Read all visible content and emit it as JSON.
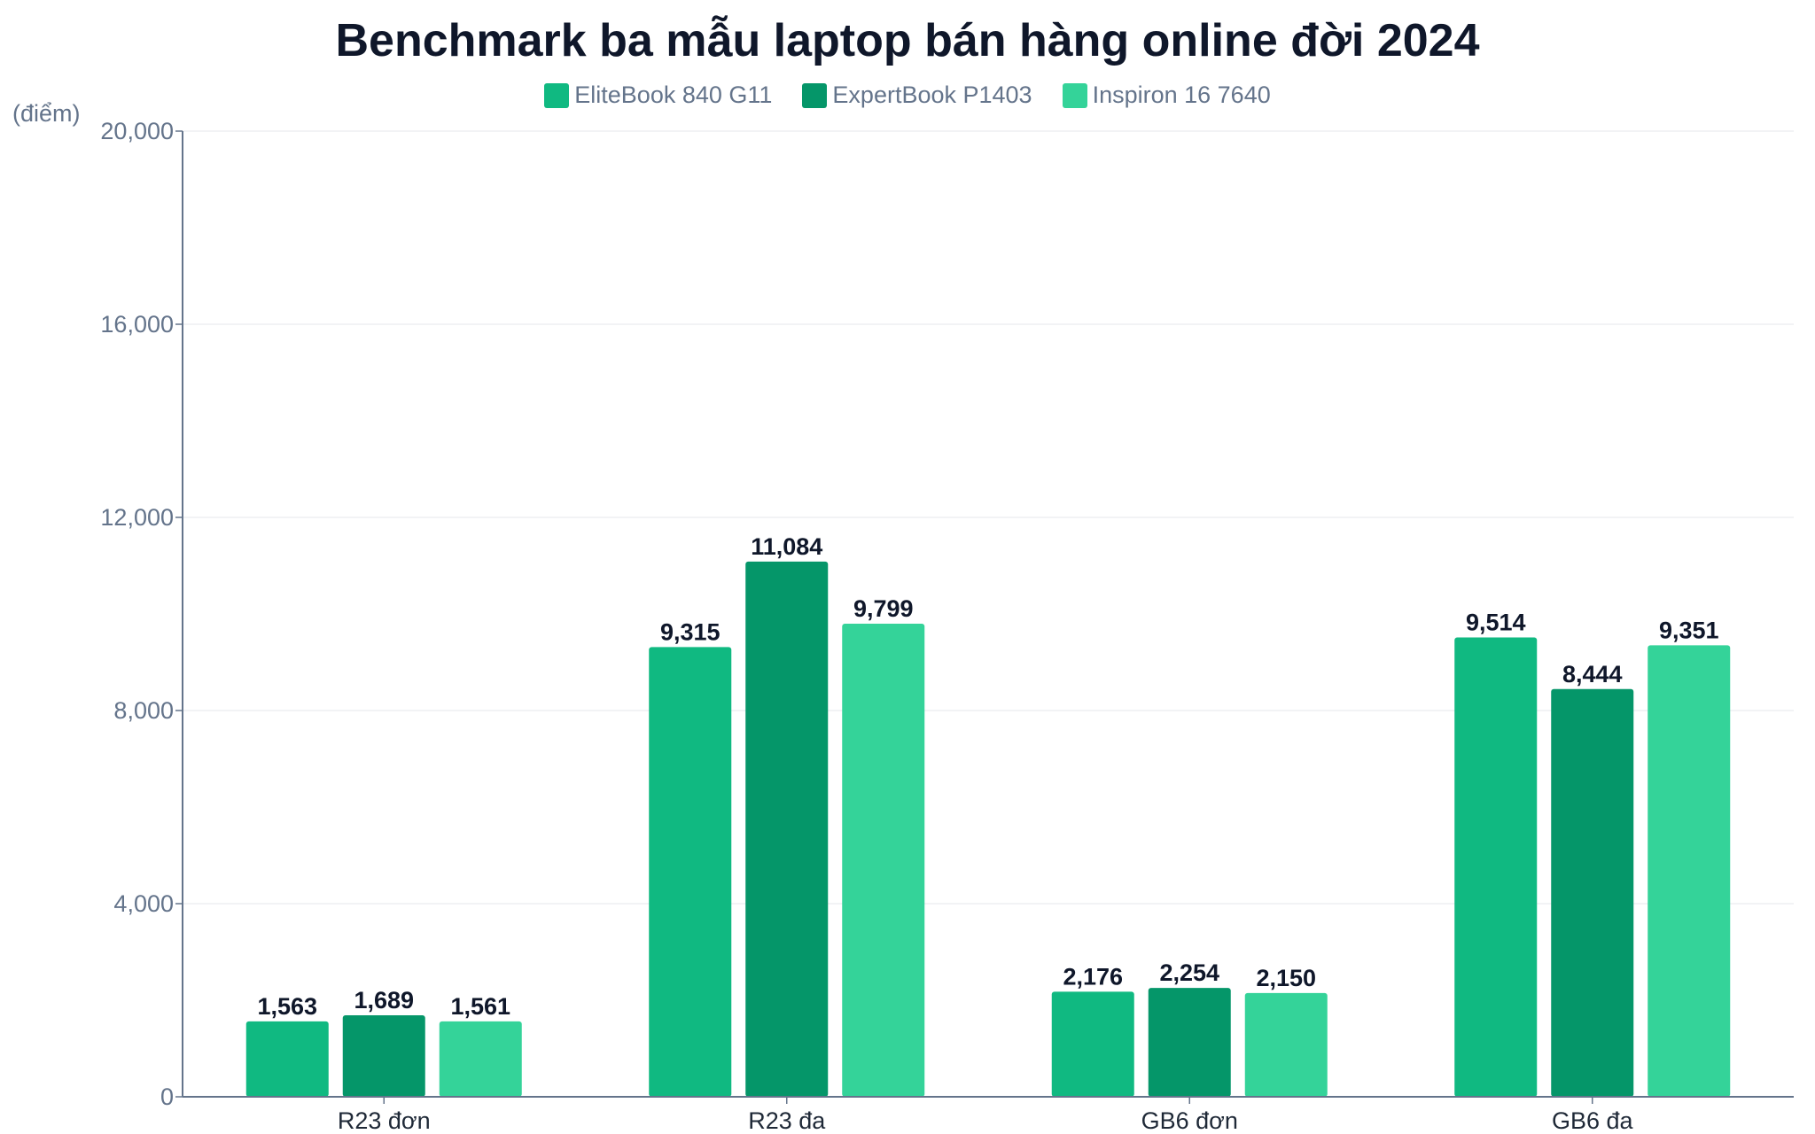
{
  "colors": {
    "EliteBook 840 G11": "#10b981",
    "ExpertBook P1403": "#059669",
    "Inspiron 16 7640": "#34d399",
    "grid": "#e5e7eb",
    "axis": "#64748b"
  },
  "chart_data": {
    "type": "bar",
    "title": "Benchmark ba mẫu laptop bán hàng online đời 2024",
    "ylabel": "(điểm)",
    "xlabel": "",
    "categories": [
      "R23 đơn",
      "R23 đa",
      "GB6 đơn",
      "GB6 đa"
    ],
    "series": [
      {
        "name": "EliteBook 840 G11",
        "values": [
          1563,
          9315,
          2176,
          9514
        ]
      },
      {
        "name": "ExpertBook P1403",
        "values": [
          1689,
          11084,
          2254,
          8444
        ]
      },
      {
        "name": "Inspiron 16 7640",
        "values": [
          1561,
          9799,
          2150,
          9351
        ]
      }
    ],
    "ylim": [
      0,
      20000
    ],
    "yticks": [
      0,
      4000,
      8000,
      12000,
      16000,
      20000
    ],
    "ytick_labels": [
      "0",
      "4,000",
      "8,000",
      "12,000",
      "16,000",
      "20,000"
    ],
    "grid": true,
    "legend_position": "top-center",
    "data_labels": true
  }
}
